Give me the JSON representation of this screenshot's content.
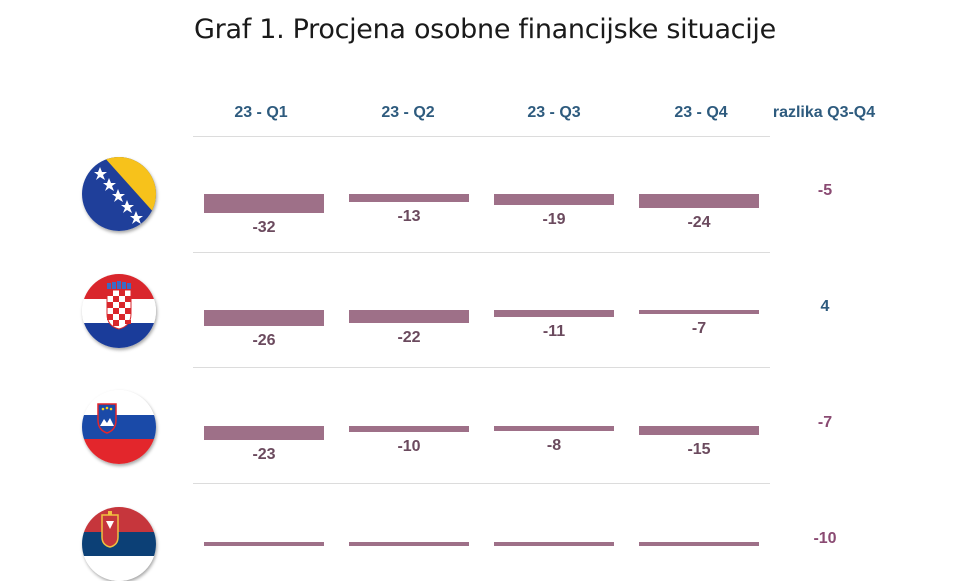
{
  "title": "Graf 1. Procjena osobne financijske situacije",
  "columns": [
    "23 - Q1",
    "23 - Q2",
    "23 - Q3",
    "23 - Q4"
  ],
  "diff_header": "razlika Q3-Q4",
  "colors": {
    "bar": "#9e7088",
    "diff_negative": "#8a4a72",
    "diff_positive": "#2e5b7e"
  },
  "chart_data": {
    "type": "bar",
    "title": "Graf 1. Procjena osobne financijske situacije",
    "categories": [
      "23 - Q1",
      "23 - Q2",
      "23 - Q3",
      "23 - Q4"
    ],
    "series": [
      {
        "flag": "bosnia-herzegovina-flag-icon",
        "values": [
          -32,
          -13,
          -19,
          -24
        ],
        "diff": "-5"
      },
      {
        "flag": "croatia-flag-icon",
        "values": [
          -26,
          -22,
          -11,
          -7
        ],
        "diff": "4"
      },
      {
        "flag": "slovenia-flag-icon",
        "values": [
          -23,
          -10,
          -8,
          -15
        ],
        "diff": "-7"
      },
      {
        "flag": "serbia-flag-icon",
        "values": [
          null,
          null,
          null,
          null
        ],
        "diff": "-10"
      }
    ]
  }
}
